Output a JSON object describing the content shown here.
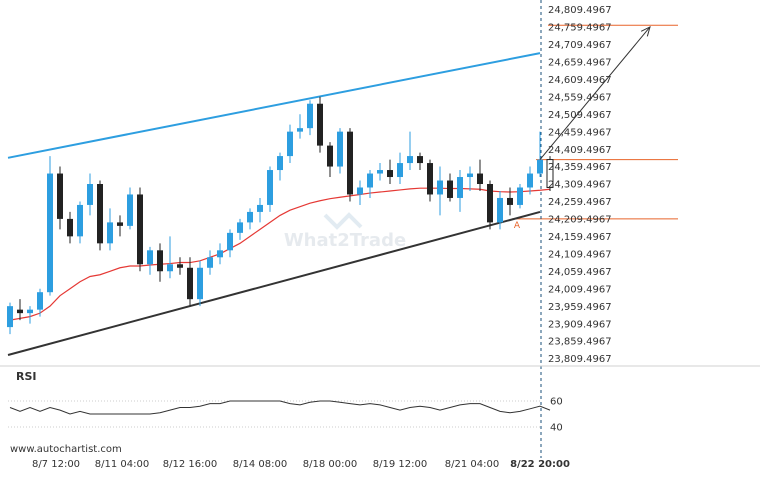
{
  "chart_data": {
    "type": "candlestick",
    "instrument": "",
    "x_tick_labels": [
      "8/7 12:00",
      "8/11 04:00",
      "8/12 16:00",
      "8/14 08:00",
      "8/18 00:00",
      "8/19 12:00",
      "8/21 04:00",
      "8/22 20:00"
    ],
    "y_tick_labels": [
      "24,809.4967",
      "24,759.4967",
      "24,709.4967",
      "24,659.4967",
      "24,609.4967",
      "24,559.4967",
      "24,509.4967",
      "24,459.4967",
      "24,409.4967",
      "24,359.4967",
      "24,309.4967",
      "24,259.4967",
      "24,209.4967",
      "24,159.4967",
      "24,109.4967",
      "24,059.4967",
      "24,009.4967",
      "23,959.4967",
      "23,909.4967",
      "23,859.4967",
      "23,809.4967"
    ],
    "ylim": [
      23800,
      24820
    ],
    "candles": [
      {
        "o": 23900,
        "h": 23970,
        "l": 23880,
        "c": 23960
      },
      {
        "o": 23950,
        "h": 23980,
        "l": 23920,
        "c": 23940
      },
      {
        "o": 23940,
        "h": 23960,
        "l": 23910,
        "c": 23950
      },
      {
        "o": 23950,
        "h": 24010,
        "l": 23930,
        "c": 24000
      },
      {
        "o": 24000,
        "h": 24390,
        "l": 23990,
        "c": 24340
      },
      {
        "o": 24340,
        "h": 24360,
        "l": 24180,
        "c": 24210
      },
      {
        "o": 24210,
        "h": 24230,
        "l": 24140,
        "c": 24160
      },
      {
        "o": 24160,
        "h": 24260,
        "l": 24140,
        "c": 24250
      },
      {
        "o": 24250,
        "h": 24340,
        "l": 24220,
        "c": 24310
      },
      {
        "o": 24310,
        "h": 24320,
        "l": 24120,
        "c": 24140
      },
      {
        "o": 24140,
        "h": 24240,
        "l": 24120,
        "c": 24200
      },
      {
        "o": 24200,
        "h": 24220,
        "l": 24160,
        "c": 24190
      },
      {
        "o": 24190,
        "h": 24300,
        "l": 24180,
        "c": 24280
      },
      {
        "o": 24280,
        "h": 24300,
        "l": 24060,
        "c": 24080
      },
      {
        "o": 24080,
        "h": 24130,
        "l": 24050,
        "c": 24120
      },
      {
        "o": 24120,
        "h": 24140,
        "l": 24030,
        "c": 24060
      },
      {
        "o": 24060,
        "h": 24160,
        "l": 24040,
        "c": 24080
      },
      {
        "o": 24080,
        "h": 24100,
        "l": 24050,
        "c": 24070
      },
      {
        "o": 24070,
        "h": 24100,
        "l": 23960,
        "c": 23980
      },
      {
        "o": 23980,
        "h": 24090,
        "l": 23960,
        "c": 24070
      },
      {
        "o": 24070,
        "h": 24120,
        "l": 24050,
        "c": 24100
      },
      {
        "o": 24100,
        "h": 24140,
        "l": 24080,
        "c": 24120
      },
      {
        "o": 24120,
        "h": 24180,
        "l": 24100,
        "c": 24170
      },
      {
        "o": 24170,
        "h": 24210,
        "l": 24150,
        "c": 24200
      },
      {
        "o": 24200,
        "h": 24240,
        "l": 24180,
        "c": 24230
      },
      {
        "o": 24230,
        "h": 24270,
        "l": 24200,
        "c": 24250
      },
      {
        "o": 24250,
        "h": 24360,
        "l": 24230,
        "c": 24350
      },
      {
        "o": 24350,
        "h": 24400,
        "l": 24320,
        "c": 24390
      },
      {
        "o": 24390,
        "h": 24480,
        "l": 24370,
        "c": 24460
      },
      {
        "o": 24460,
        "h": 24510,
        "l": 24440,
        "c": 24470
      },
      {
        "o": 24470,
        "h": 24550,
        "l": 24450,
        "c": 24540
      },
      {
        "o": 24540,
        "h": 24560,
        "l": 24400,
        "c": 24420
      },
      {
        "o": 24420,
        "h": 24430,
        "l": 24330,
        "c": 24360
      },
      {
        "o": 24360,
        "h": 24470,
        "l": 24340,
        "c": 24460
      },
      {
        "o": 24460,
        "h": 24470,
        "l": 24260,
        "c": 24280
      },
      {
        "o": 24280,
        "h": 24320,
        "l": 24250,
        "c": 24300
      },
      {
        "o": 24300,
        "h": 24350,
        "l": 24270,
        "c": 24340
      },
      {
        "o": 24340,
        "h": 24370,
        "l": 24320,
        "c": 24350
      },
      {
        "o": 24350,
        "h": 24380,
        "l": 24310,
        "c": 24330
      },
      {
        "o": 24330,
        "h": 24400,
        "l": 24310,
        "c": 24370
      },
      {
        "o": 24370,
        "h": 24460,
        "l": 24350,
        "c": 24390
      },
      {
        "o": 24390,
        "h": 24400,
        "l": 24350,
        "c": 24370
      },
      {
        "o": 24370,
        "h": 24380,
        "l": 24260,
        "c": 24280
      },
      {
        "o": 24280,
        "h": 24360,
        "l": 24220,
        "c": 24320
      },
      {
        "o": 24320,
        "h": 24340,
        "l": 24260,
        "c": 24270
      },
      {
        "o": 24270,
        "h": 24350,
        "l": 24230,
        "c": 24330
      },
      {
        "o": 24330,
        "h": 24360,
        "l": 24290,
        "c": 24340
      },
      {
        "o": 24340,
        "h": 24380,
        "l": 24290,
        "c": 24310
      },
      {
        "o": 24310,
        "h": 24320,
        "l": 24180,
        "c": 24200
      },
      {
        "o": 24200,
        "h": 24290,
        "l": 24180,
        "c": 24270
      },
      {
        "o": 24270,
        "h": 24300,
        "l": 24220,
        "c": 24250
      },
      {
        "o": 24250,
        "h": 24310,
        "l": 24240,
        "c": 24300
      },
      {
        "o": 24300,
        "h": 24360,
        "l": 24280,
        "c": 24340
      },
      {
        "o": 24340,
        "h": 24460,
        "l": 24330,
        "c": 24380
      },
      {
        "o": 24380,
        "h": 24390,
        "l": 24290,
        "c": 24300
      }
    ],
    "moving_average": [
      23920,
      23925,
      23930,
      23940,
      23960,
      23990,
      24010,
      24030,
      24045,
      24050,
      24060,
      24070,
      24075,
      24075,
      24078,
      24080,
      24082,
      24085,
      24085,
      24090,
      24100,
      24110,
      24125,
      24140,
      24160,
      24180,
      24200,
      24220,
      24235,
      24245,
      24255,
      24262,
      24268,
      24272,
      24276,
      24280,
      24284,
      24287,
      24290,
      24293,
      24296,
      24298,
      24298,
      24298,
      24297,
      24297,
      24296,
      24295,
      24290,
      24288,
      24287,
      24288,
      24290,
      24292,
      24295
    ],
    "channel_upper": {
      "from_index": 0,
      "from_value": 24385,
      "to_index": 53,
      "to_value": 24685
    },
    "channel_lower": {
      "from_index": 0,
      "from_value": 23820,
      "to_index": 53,
      "to_value": 24230
    },
    "resistance_level": 24380,
    "support_level": 24210,
    "target_level": 24765,
    "support_marker": "A",
    "projection": {
      "from_index": 53,
      "from_value": 24380,
      "to_index": 64,
      "to_value": 24760
    },
    "current_bar_label": "8/22 20:00",
    "rsi": {
      "label": "RSI",
      "levels": [
        60,
        40
      ],
      "level_labels": [
        "60",
        "40"
      ],
      "ylim": [
        30,
        70
      ],
      "values": [
        55,
        52,
        55,
        52,
        55,
        53,
        50,
        52,
        50,
        50,
        50,
        50,
        50,
        50,
        50,
        51,
        53,
        55,
        55,
        56,
        58,
        58,
        60,
        60,
        60,
        60,
        60,
        60,
        58,
        57,
        59,
        60,
        60,
        59,
        58,
        57,
        58,
        57,
        55,
        53,
        55,
        56,
        55,
        53,
        55,
        57,
        58,
        58,
        55,
        52,
        51,
        52,
        54,
        56,
        53
      ]
    },
    "colors": {
      "bull": "#2d9ee0",
      "bear": "#222222",
      "channel_upper": "#2d9ee0",
      "channel_lower": "#333333",
      "moving_average": "#e53935",
      "levels": "#e8642a"
    }
  },
  "watermark": "What2Trade",
  "footer_url": "www.autochartist.com"
}
